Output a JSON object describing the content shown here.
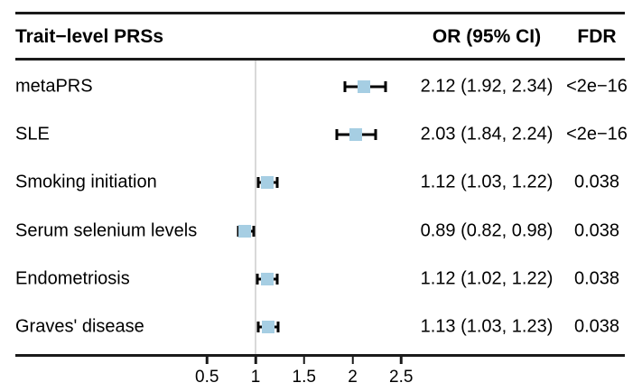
{
  "chart_data": {
    "type": "forest",
    "title": "Trait−level PRSs",
    "or_header": "OR (95% CI)",
    "fdr_header": "FDR",
    "x_axis": {
      "ticks": [
        0.5,
        1,
        1.5,
        2,
        2.5
      ],
      "tick_labels": [
        "0.5",
        "1",
        "1.5",
        "2",
        "2.5"
      ],
      "reference_line": 1,
      "range": [
        0.4,
        2.9
      ]
    },
    "rows": [
      {
        "label": "metaPRS",
        "or": 2.12,
        "ci_low": 1.92,
        "ci_high": 2.34,
        "or_text": "2.12 (1.92, 2.34)",
        "fdr": "<2e−16"
      },
      {
        "label": "SLE",
        "or": 2.03,
        "ci_low": 1.84,
        "ci_high": 2.24,
        "or_text": "2.03 (1.84, 2.24)",
        "fdr": "<2e−16"
      },
      {
        "label": "Smoking initiation",
        "or": 1.12,
        "ci_low": 1.03,
        "ci_high": 1.22,
        "or_text": "1.12 (1.03, 1.22)",
        "fdr": "0.038"
      },
      {
        "label": "Serum selenium levels",
        "or": 0.89,
        "ci_low": 0.82,
        "ci_high": 0.98,
        "or_text": "0.89 (0.82, 0.98)",
        "fdr": "0.038"
      },
      {
        "label": "Endometriosis",
        "or": 1.12,
        "ci_low": 1.02,
        "ci_high": 1.22,
        "or_text": "1.12 (1.02, 1.22)",
        "fdr": "0.038"
      },
      {
        "label": "Graves' disease",
        "or": 1.13,
        "ci_low": 1.03,
        "ci_high": 1.23,
        "or_text": "1.13 (1.03, 1.23)",
        "fdr": "0.038"
      }
    ],
    "colors": {
      "marker": "#a6cee3",
      "ci_line": "#000000",
      "reference_line": "#d9d9d9",
      "text": "#000000",
      "rule": "#1a1a1a"
    }
  }
}
